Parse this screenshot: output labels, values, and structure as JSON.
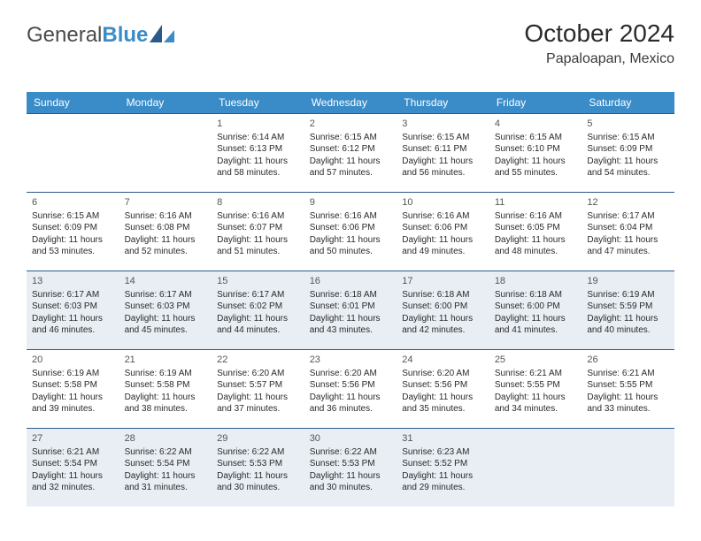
{
  "logo": {
    "part1": "General",
    "part2": "Blue"
  },
  "header": {
    "month_title": "October 2024",
    "location": "Papaloapan, Mexico"
  },
  "colors": {
    "header_bg": "#3a8cc8",
    "header_text": "#ffffff",
    "week_border": "#2a5a8a",
    "alt_row_bg": "#e8eef4",
    "body_text": "#2a2a2a",
    "daynum_text": "#555555",
    "page_bg": "#ffffff",
    "logo_gray": "#4a4a4a",
    "logo_blue": "#3a8cc8"
  },
  "weekdays": [
    "Sunday",
    "Monday",
    "Tuesday",
    "Wednesday",
    "Thursday",
    "Friday",
    "Saturday"
  ],
  "weeks": [
    {
      "alt": false,
      "days": [
        {
          "blank": true
        },
        {
          "blank": true
        },
        {
          "num": "1",
          "sunrise": "Sunrise: 6:14 AM",
          "sunset": "Sunset: 6:13 PM",
          "daylight": "Daylight: 11 hours and 58 minutes."
        },
        {
          "num": "2",
          "sunrise": "Sunrise: 6:15 AM",
          "sunset": "Sunset: 6:12 PM",
          "daylight": "Daylight: 11 hours and 57 minutes."
        },
        {
          "num": "3",
          "sunrise": "Sunrise: 6:15 AM",
          "sunset": "Sunset: 6:11 PM",
          "daylight": "Daylight: 11 hours and 56 minutes."
        },
        {
          "num": "4",
          "sunrise": "Sunrise: 6:15 AM",
          "sunset": "Sunset: 6:10 PM",
          "daylight": "Daylight: 11 hours and 55 minutes."
        },
        {
          "num": "5",
          "sunrise": "Sunrise: 6:15 AM",
          "sunset": "Sunset: 6:09 PM",
          "daylight": "Daylight: 11 hours and 54 minutes."
        }
      ]
    },
    {
      "alt": false,
      "days": [
        {
          "num": "6",
          "sunrise": "Sunrise: 6:15 AM",
          "sunset": "Sunset: 6:09 PM",
          "daylight": "Daylight: 11 hours and 53 minutes."
        },
        {
          "num": "7",
          "sunrise": "Sunrise: 6:16 AM",
          "sunset": "Sunset: 6:08 PM",
          "daylight": "Daylight: 11 hours and 52 minutes."
        },
        {
          "num": "8",
          "sunrise": "Sunrise: 6:16 AM",
          "sunset": "Sunset: 6:07 PM",
          "daylight": "Daylight: 11 hours and 51 minutes."
        },
        {
          "num": "9",
          "sunrise": "Sunrise: 6:16 AM",
          "sunset": "Sunset: 6:06 PM",
          "daylight": "Daylight: 11 hours and 50 minutes."
        },
        {
          "num": "10",
          "sunrise": "Sunrise: 6:16 AM",
          "sunset": "Sunset: 6:06 PM",
          "daylight": "Daylight: 11 hours and 49 minutes."
        },
        {
          "num": "11",
          "sunrise": "Sunrise: 6:16 AM",
          "sunset": "Sunset: 6:05 PM",
          "daylight": "Daylight: 11 hours and 48 minutes."
        },
        {
          "num": "12",
          "sunrise": "Sunrise: 6:17 AM",
          "sunset": "Sunset: 6:04 PM",
          "daylight": "Daylight: 11 hours and 47 minutes."
        }
      ]
    },
    {
      "alt": true,
      "days": [
        {
          "num": "13",
          "sunrise": "Sunrise: 6:17 AM",
          "sunset": "Sunset: 6:03 PM",
          "daylight": "Daylight: 11 hours and 46 minutes."
        },
        {
          "num": "14",
          "sunrise": "Sunrise: 6:17 AM",
          "sunset": "Sunset: 6:03 PM",
          "daylight": "Daylight: 11 hours and 45 minutes."
        },
        {
          "num": "15",
          "sunrise": "Sunrise: 6:17 AM",
          "sunset": "Sunset: 6:02 PM",
          "daylight": "Daylight: 11 hours and 44 minutes."
        },
        {
          "num": "16",
          "sunrise": "Sunrise: 6:18 AM",
          "sunset": "Sunset: 6:01 PM",
          "daylight": "Daylight: 11 hours and 43 minutes."
        },
        {
          "num": "17",
          "sunrise": "Sunrise: 6:18 AM",
          "sunset": "Sunset: 6:00 PM",
          "daylight": "Daylight: 11 hours and 42 minutes."
        },
        {
          "num": "18",
          "sunrise": "Sunrise: 6:18 AM",
          "sunset": "Sunset: 6:00 PM",
          "daylight": "Daylight: 11 hours and 41 minutes."
        },
        {
          "num": "19",
          "sunrise": "Sunrise: 6:19 AM",
          "sunset": "Sunset: 5:59 PM",
          "daylight": "Daylight: 11 hours and 40 minutes."
        }
      ]
    },
    {
      "alt": false,
      "days": [
        {
          "num": "20",
          "sunrise": "Sunrise: 6:19 AM",
          "sunset": "Sunset: 5:58 PM",
          "daylight": "Daylight: 11 hours and 39 minutes."
        },
        {
          "num": "21",
          "sunrise": "Sunrise: 6:19 AM",
          "sunset": "Sunset: 5:58 PM",
          "daylight": "Daylight: 11 hours and 38 minutes."
        },
        {
          "num": "22",
          "sunrise": "Sunrise: 6:20 AM",
          "sunset": "Sunset: 5:57 PM",
          "daylight": "Daylight: 11 hours and 37 minutes."
        },
        {
          "num": "23",
          "sunrise": "Sunrise: 6:20 AM",
          "sunset": "Sunset: 5:56 PM",
          "daylight": "Daylight: 11 hours and 36 minutes."
        },
        {
          "num": "24",
          "sunrise": "Sunrise: 6:20 AM",
          "sunset": "Sunset: 5:56 PM",
          "daylight": "Daylight: 11 hours and 35 minutes."
        },
        {
          "num": "25",
          "sunrise": "Sunrise: 6:21 AM",
          "sunset": "Sunset: 5:55 PM",
          "daylight": "Daylight: 11 hours and 34 minutes."
        },
        {
          "num": "26",
          "sunrise": "Sunrise: 6:21 AM",
          "sunset": "Sunset: 5:55 PM",
          "daylight": "Daylight: 11 hours and 33 minutes."
        }
      ]
    },
    {
      "alt": true,
      "days": [
        {
          "num": "27",
          "sunrise": "Sunrise: 6:21 AM",
          "sunset": "Sunset: 5:54 PM",
          "daylight": "Daylight: 11 hours and 32 minutes."
        },
        {
          "num": "28",
          "sunrise": "Sunrise: 6:22 AM",
          "sunset": "Sunset: 5:54 PM",
          "daylight": "Daylight: 11 hours and 31 minutes."
        },
        {
          "num": "29",
          "sunrise": "Sunrise: 6:22 AM",
          "sunset": "Sunset: 5:53 PM",
          "daylight": "Daylight: 11 hours and 30 minutes."
        },
        {
          "num": "30",
          "sunrise": "Sunrise: 6:22 AM",
          "sunset": "Sunset: 5:53 PM",
          "daylight": "Daylight: 11 hours and 30 minutes."
        },
        {
          "num": "31",
          "sunrise": "Sunrise: 6:23 AM",
          "sunset": "Sunset: 5:52 PM",
          "daylight": "Daylight: 11 hours and 29 minutes."
        },
        {
          "blank": true
        },
        {
          "blank": true
        }
      ]
    }
  ]
}
